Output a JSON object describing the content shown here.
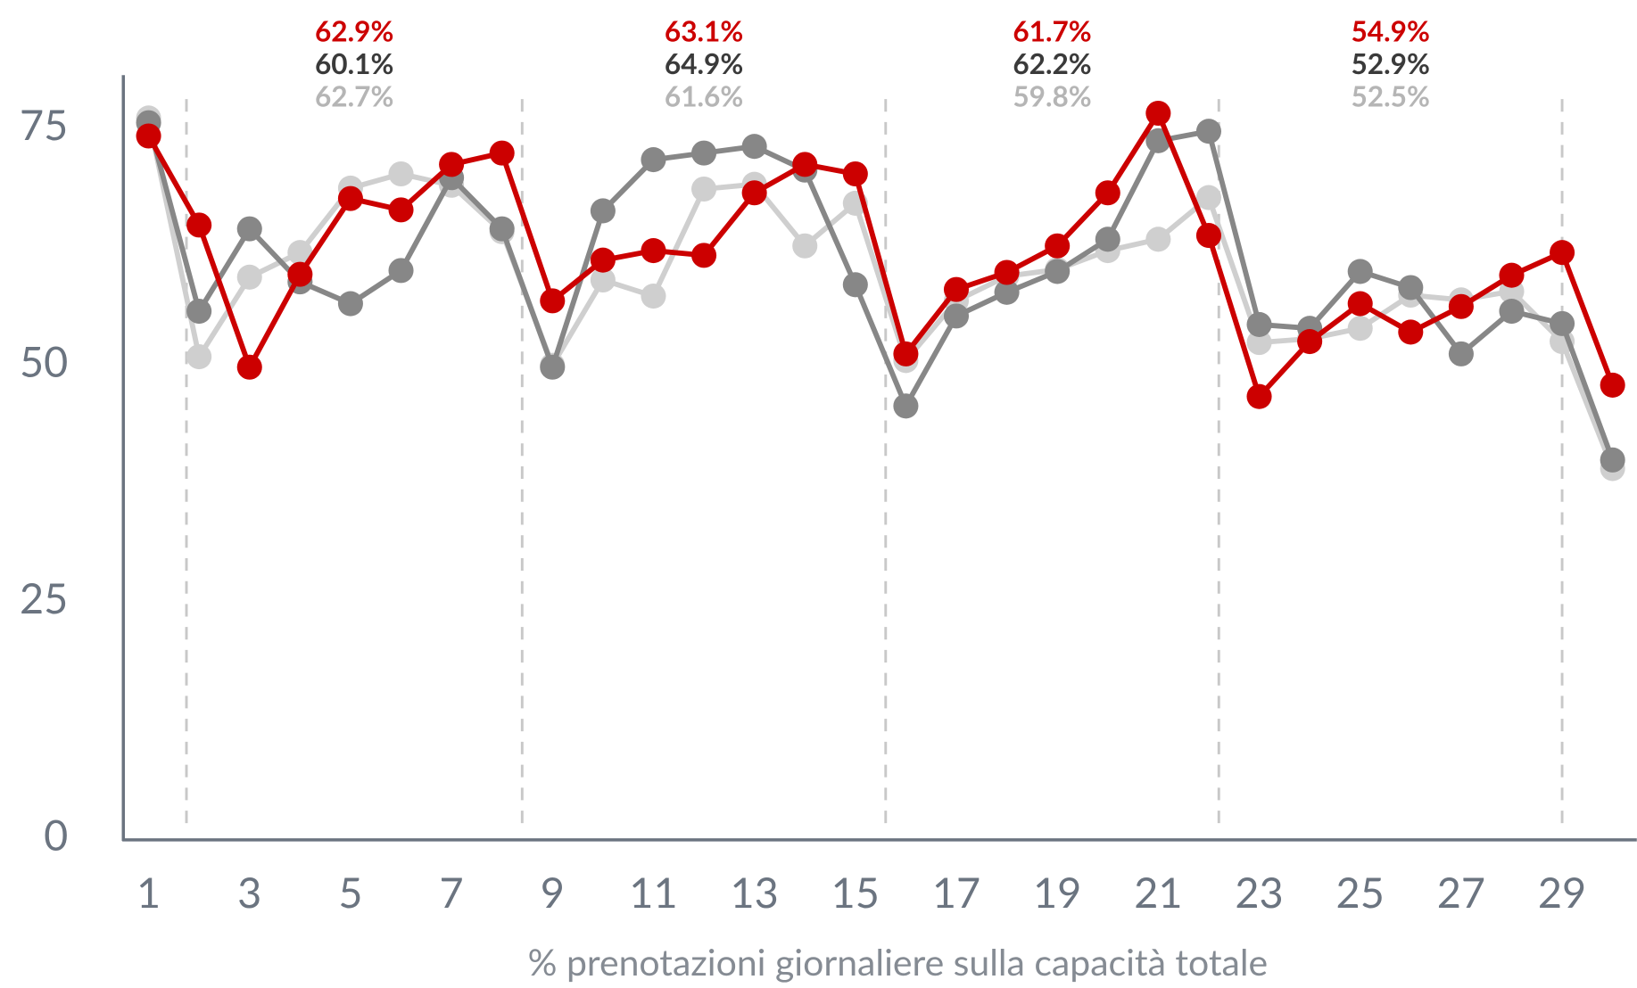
{
  "chart_data": {
    "type": "line",
    "x_label": "% prenotazioni giornaliere sulla capacità totale",
    "x": [
      1,
      2,
      3,
      4,
      5,
      6,
      7,
      8,
      9,
      10,
      11,
      12,
      13,
      14,
      15,
      16,
      17,
      18,
      19,
      20,
      21,
      22,
      23,
      24,
      25,
      26,
      27,
      28,
      29,
      30
    ],
    "xlim": [
      0.5,
      30.5
    ],
    "xticks": [
      1,
      3,
      5,
      7,
      9,
      11,
      13,
      15,
      17,
      19,
      21,
      23,
      25,
      27,
      29
    ],
    "ylim": [
      0,
      80
    ],
    "yticks": [
      0,
      25,
      50,
      75
    ],
    "separators": [
      1.75,
      8.4,
      15.6,
      22.2,
      29
    ],
    "series": [
      {
        "color": "#cc0000",
        "values": [
          74.3,
          64.9,
          49.9,
          59.7,
          67.7,
          66.5,
          71.3,
          72.5,
          56.9,
          61.2,
          62.2,
          61.7,
          68.3,
          71.3,
          70.3,
          51.3,
          58.1,
          59.9,
          62.7,
          68.3,
          76.7,
          63.8,
          46.8,
          52.6,
          56.6,
          53.6,
          56.3,
          59.6,
          62.0,
          48.0
        ]
      },
      {
        "color": "#878787",
        "values": [
          75.7,
          55.8,
          64.5,
          58.9,
          56.6,
          60.1,
          69.9,
          64.5,
          49.9,
          66.4,
          71.8,
          72.5,
          73.2,
          70.7,
          58.6,
          45.8,
          55.3,
          57.8,
          60.0,
          63.4,
          73.8,
          74.8,
          54.4,
          54.0,
          60.0,
          58.3,
          51.3,
          55.8,
          54.5,
          40.1
        ]
      },
      {
        "color": "#cfcfcf",
        "values": [
          76.2,
          51.0,
          59.4,
          62.0,
          68.8,
          70.3,
          69.1,
          64.2,
          50.1,
          59.1,
          57.4,
          68.7,
          69.2,
          62.7,
          67.2,
          50.6,
          56.9,
          59.5,
          60.2,
          62.2,
          63.4,
          67.8,
          52.5,
          52.9,
          54.0,
          57.5,
          57.0,
          57.9,
          52.6,
          39.2
        ]
      }
    ],
    "annotation_colors": [
      "#cc0000",
      "#3a3a3a",
      "#b5b5b5"
    ],
    "annotations": [
      [
        "62.9%",
        "60.1%",
        "62.7%"
      ],
      [
        "63.1%",
        "64.9%",
        "61.6%"
      ],
      [
        "61.7%",
        "62.2%",
        "59.8%"
      ],
      [
        "54.9%",
        "52.9%",
        "52.5%"
      ]
    ]
  }
}
